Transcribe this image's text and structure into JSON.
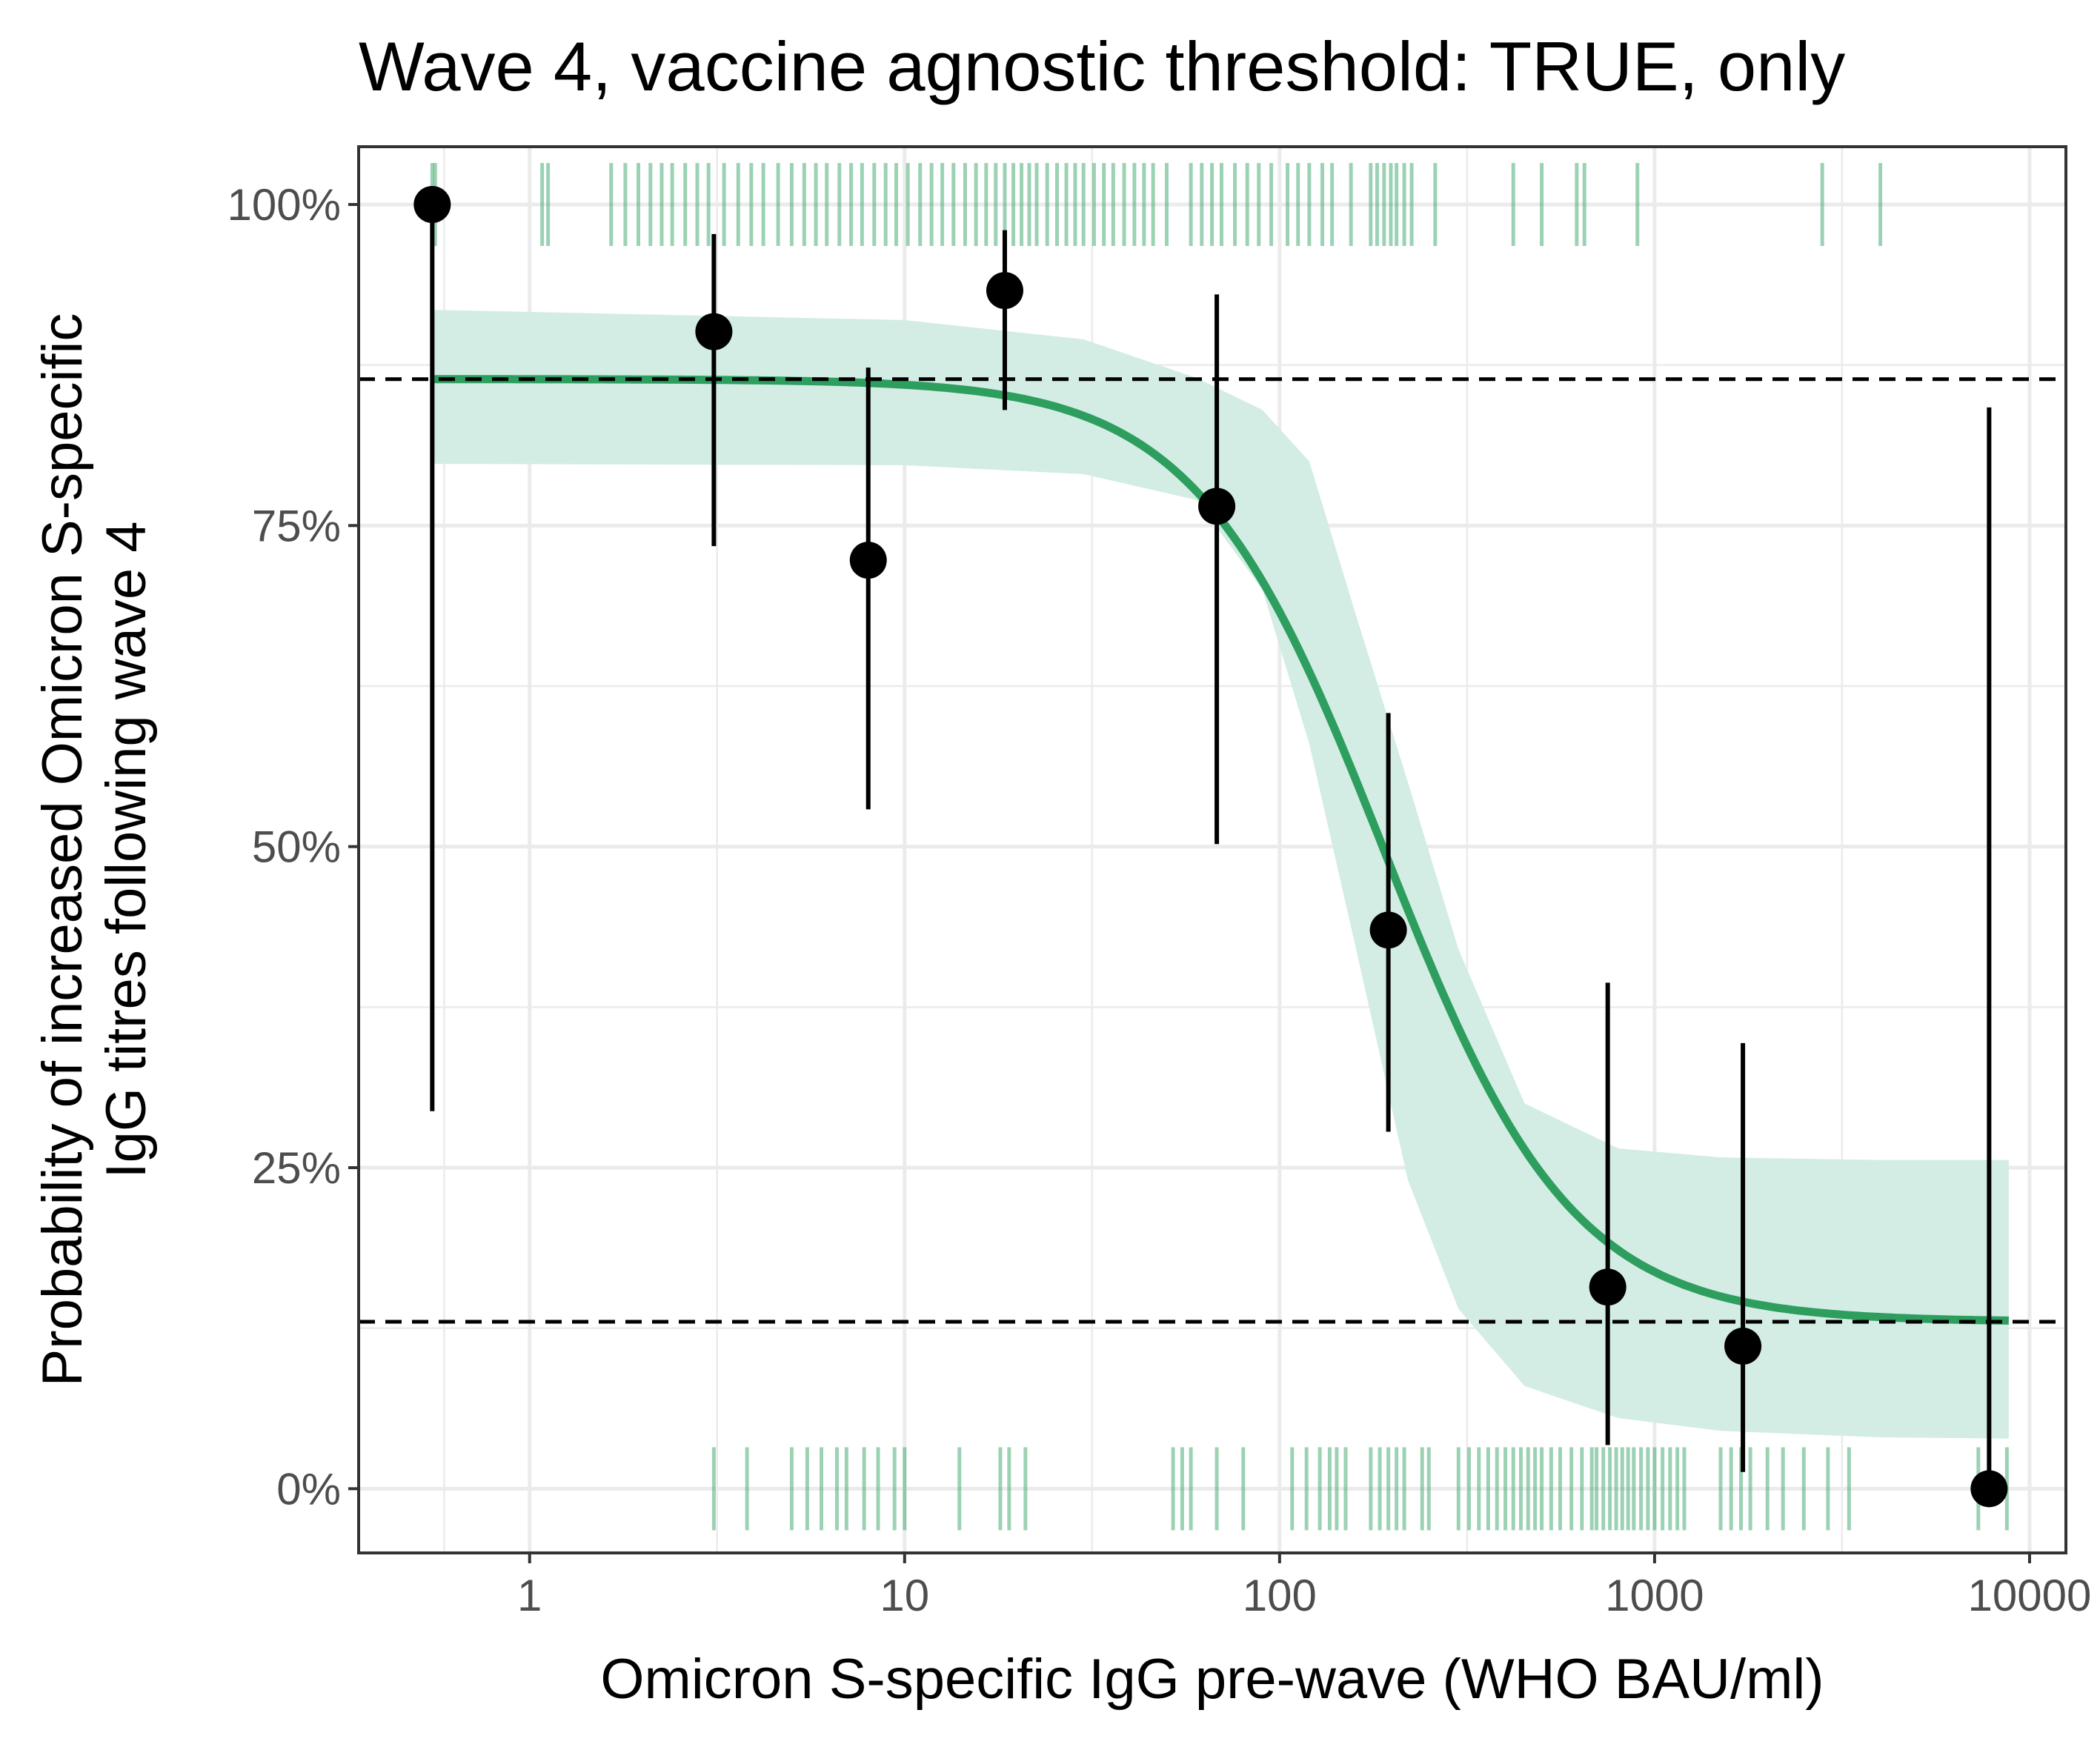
{
  "chart_data": {
    "type": "scatter",
    "title": "Wave 4, vaccine agnostic threshold: TRUE, only",
    "xlabel": "Omicron S-specific IgG pre-wave (WHO BAU/ml)",
    "ylabel_lines": [
      "Probability of increased Omicron S-specific",
      "IgG titres following wave 4"
    ],
    "x_scale": "log10",
    "xlim": [
      0.35,
      12500
    ],
    "ylim": [
      -0.05,
      1.045
    ],
    "x_ticks": [
      {
        "value": 1,
        "label": "1"
      },
      {
        "value": 10,
        "label": "10"
      },
      {
        "value": 100,
        "label": "100"
      },
      {
        "value": 1000,
        "label": "1000"
      },
      {
        "value": 10000,
        "label": "10000"
      }
    ],
    "y_ticks": [
      {
        "value": 0,
        "label": "0%"
      },
      {
        "value": 0.25,
        "label": "25%"
      },
      {
        "value": 0.5,
        "label": "50%"
      },
      {
        "value": 0.75,
        "label": "75%"
      },
      {
        "value": 1,
        "label": "100%"
      }
    ],
    "grid": true,
    "colors": {
      "fit_line": "#2e9e5f",
      "ribbon": "#d3ede4",
      "rug": "#3aa66a",
      "points": "#000000",
      "grid": "#ebebeb",
      "panel_border": "#333333"
    },
    "binned_points": [
      {
        "x": 0.55,
        "y": 1.0,
        "lower": 0.294,
        "upper": 1.0
      },
      {
        "x": 3.1,
        "y": 0.901,
        "lower": 0.734,
        "upper": 0.977
      },
      {
        "x": 8.0,
        "y": 0.723,
        "lower": 0.529,
        "upper": 0.873
      },
      {
        "x": 18.5,
        "y": 0.933,
        "lower": 0.84,
        "upper": 0.98
      },
      {
        "x": 68,
        "y": 0.765,
        "lower": 0.502,
        "upper": 0.93
      },
      {
        "x": 195,
        "y": 0.435,
        "lower": 0.278,
        "upper": 0.604
      },
      {
        "x": 750,
        "y": 0.157,
        "lower": 0.034,
        "upper": 0.394
      },
      {
        "x": 1720,
        "y": 0.111,
        "lower": 0.013,
        "upper": 0.347
      },
      {
        "x": 7800,
        "y": 0.0,
        "lower": 0.0,
        "upper": 0.842
      }
    ],
    "logistic_fit": {
      "upper_asymptote": 0.864,
      "lower_asymptote": 0.13,
      "midpoint": 190,
      "steepness_log10": 4.0,
      "x_from": 0.55,
      "x_to": 8800
    },
    "ribbon_points": [
      {
        "x": 0.55,
        "lower": 0.798,
        "upper": 0.918
      },
      {
        "x": 10,
        "lower": 0.797,
        "upper": 0.91
      },
      {
        "x": 30,
        "lower": 0.79,
        "upper": 0.895
      },
      {
        "x": 60,
        "lower": 0.77,
        "upper": 0.865
      },
      {
        "x": 90,
        "lower": 0.7,
        "upper": 0.84
      },
      {
        "x": 120,
        "lower": 0.58,
        "upper": 0.8
      },
      {
        "x": 160,
        "lower": 0.42,
        "upper": 0.68
      },
      {
        "x": 220,
        "lower": 0.24,
        "upper": 0.55
      },
      {
        "x": 300,
        "lower": 0.14,
        "upper": 0.42
      },
      {
        "x": 450,
        "lower": 0.08,
        "upper": 0.3
      },
      {
        "x": 800,
        "lower": 0.055,
        "upper": 0.265
      },
      {
        "x": 1500,
        "lower": 0.045,
        "upper": 0.258
      },
      {
        "x": 4000,
        "lower": 0.04,
        "upper": 0.256
      },
      {
        "x": 8800,
        "lower": 0.039,
        "upper": 0.256
      }
    ],
    "reference_lines_y": [
      0.864,
      0.13
    ],
    "rug_top_x": [
      0.55,
      0.56,
      1.08,
      1.12,
      1.65,
      1.8,
      1.95,
      2.1,
      2.25,
      2.4,
      2.6,
      2.8,
      3.0,
      3.3,
      3.6,
      3.9,
      4.2,
      4.6,
      5.0,
      5.4,
      5.8,
      6.2,
      6.7,
      7.2,
      7.7,
      8.3,
      8.9,
      9.5,
      10.2,
      11.0,
      11.8,
      12.6,
      13.5,
      14.5,
      15.5,
      16.5,
      17.5,
      18.5,
      19.5,
      20.5,
      21.5,
      22.5,
      24.0,
      25.5,
      27.0,
      28.5,
      30.0,
      32.0,
      34.0,
      36.0,
      38.5,
      41.0,
      43.5,
      46.0,
      50.0,
      58.0,
      62.0,
      66.0,
      70.0,
      76.0,
      82.0,
      88.0,
      95.0,
      105.0,
      112.0,
      120.0,
      130.0,
      138.0,
      155.0,
      175.0,
      182.0,
      190.0,
      198.0,
      205.0,
      215.0,
      225.0,
      260.0,
      420.0,
      500.0,
      620.0,
      650.0,
      900.0,
      2800.0,
      4000.0
    ],
    "rug_bottom_x": [
      3.1,
      3.8,
      5.0,
      5.5,
      6.0,
      6.6,
      7.0,
      7.8,
      8.5,
      9.4,
      10.0,
      14.0,
      18.0,
      19.0,
      21.0,
      52.0,
      55.0,
      58.0,
      68.0,
      80.0,
      108.0,
      118.0,
      128.0,
      136.0,
      142.0,
      150.0,
      175.0,
      185.0,
      195.0,
      205.0,
      215.0,
      240.0,
      250.0,
      300.0,
      320.0,
      340.0,
      360.0,
      380.0,
      400.0,
      420.0,
      440.0,
      460.0,
      480.0,
      500.0,
      530.0,
      560.0,
      600.0,
      640.0,
      680.0,
      700.0,
      730.0,
      760.0,
      790.0,
      820.0,
      850.0,
      880.0,
      920.0,
      960.0,
      1000.0,
      1050.0,
      1100.0,
      1150.0,
      1200.0,
      1500.0,
      1600.0,
      1700.0,
      1800.0,
      2000.0,
      2200.0,
      2500.0,
      2900.0,
      3300.0,
      7300.0,
      8700.0
    ]
  }
}
